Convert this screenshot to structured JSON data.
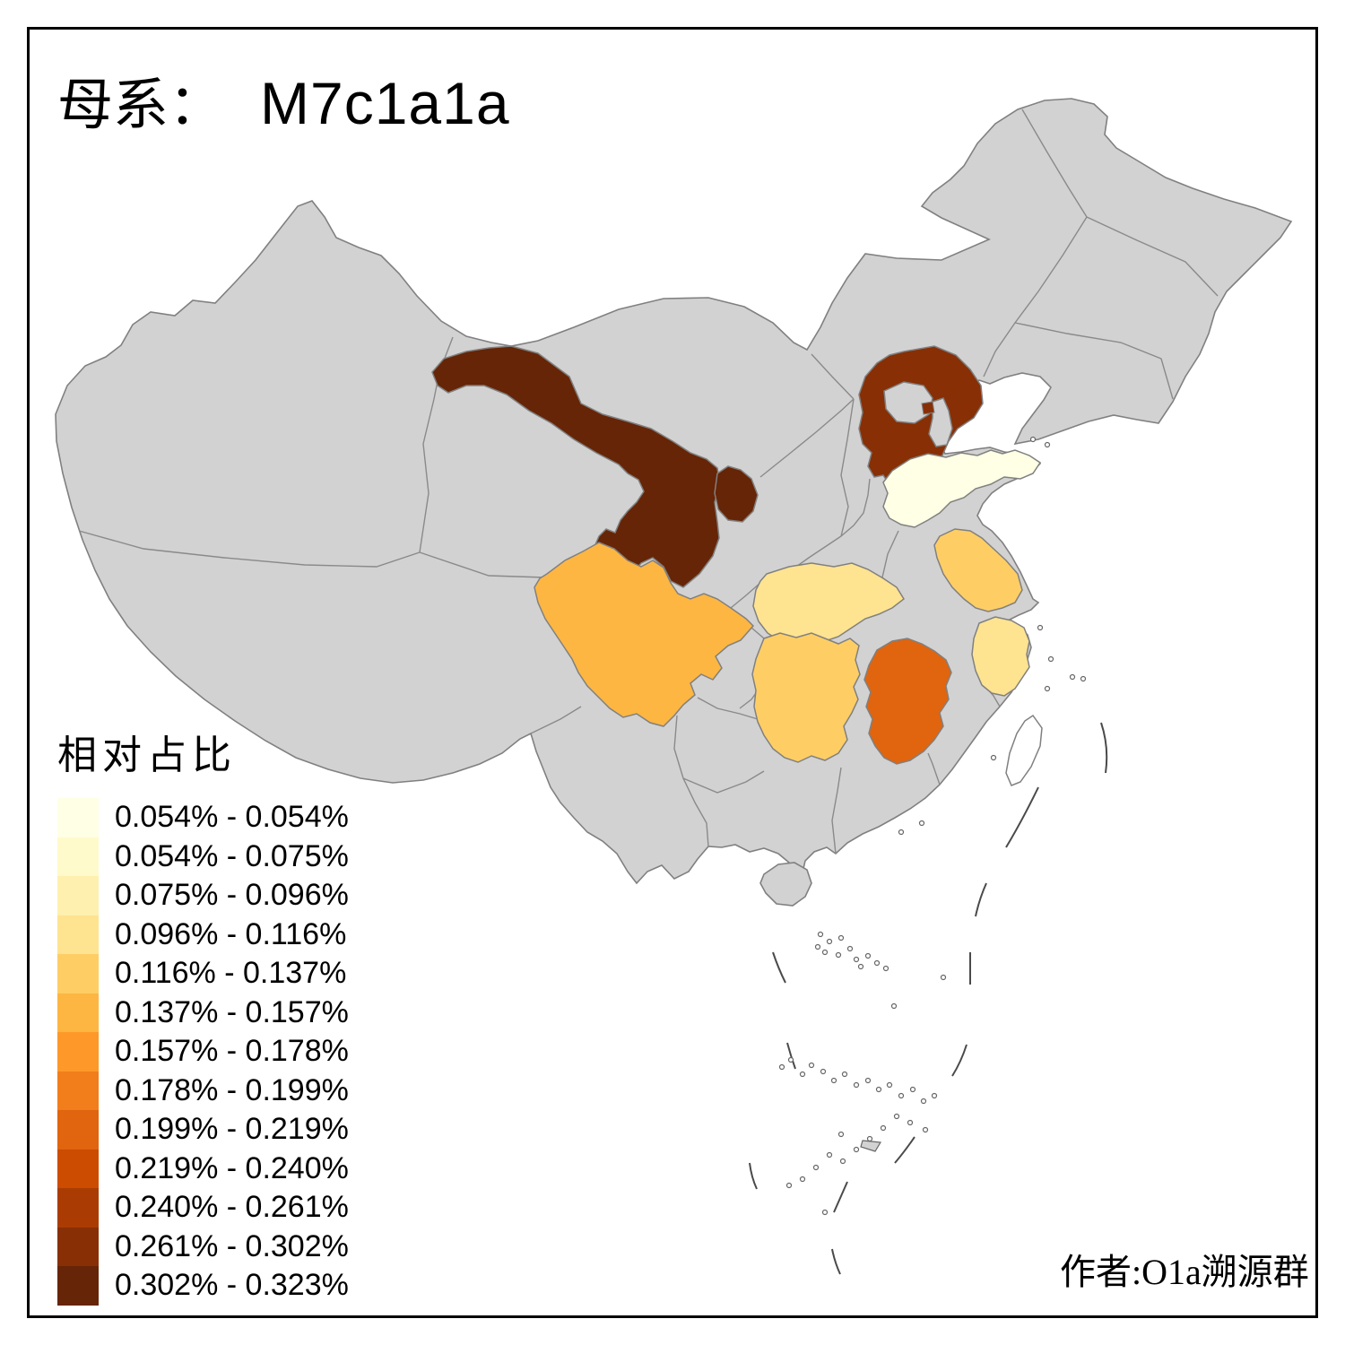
{
  "title": {
    "prefix": "母系：",
    "haplogroup": "M7c1a1a"
  },
  "legend": {
    "title": "相对占比",
    "items": [
      {
        "label": "0.054% - 0.054%",
        "color": "#FFFFE5"
      },
      {
        "label": "0.054% - 0.075%",
        "color": "#FFFACB"
      },
      {
        "label": "0.075% - 0.096%",
        "color": "#FEF0AE"
      },
      {
        "label": "0.096% - 0.116%",
        "color": "#FEE391"
      },
      {
        "label": "0.116% - 0.137%",
        "color": "#FECE65"
      },
      {
        "label": "0.137% - 0.157%",
        "color": "#FEB642"
      },
      {
        "label": "0.157% - 0.178%",
        "color": "#FE9929"
      },
      {
        "label": "0.178% - 0.199%",
        "color": "#F27E1B"
      },
      {
        "label": "0.199% - 0.219%",
        "color": "#E1640E"
      },
      {
        "label": "0.219% - 0.240%",
        "color": "#CC4C02"
      },
      {
        "label": "0.240% - 0.261%",
        "color": "#AA3C03"
      },
      {
        "label": "0.261% - 0.302%",
        "color": "#882F05"
      },
      {
        "label": "0.302% - 0.323%",
        "color": "#662506"
      }
    ]
  },
  "attribution": {
    "text": "作者:O1a溯源群"
  },
  "map": {
    "background": "#FFFFFF",
    "no_data_color": "#D2D2D2",
    "border_color": "#808080",
    "provinces": {
      "gansu": {
        "color": "#662506"
      },
      "ningxia": {
        "color": "#662506"
      },
      "hebei": {
        "color": "#882F05"
      },
      "hebei_exclave": {
        "color": "#882F05"
      },
      "shandong": {
        "color": "#FFFFE5"
      },
      "jiangsu": {
        "color": "#FECE65"
      },
      "zhejiang": {
        "color": "#FEE391"
      },
      "hubei": {
        "color": "#FEE391"
      },
      "hunan": {
        "color": "#FECE65"
      },
      "jiangxi": {
        "color": "#E1640E"
      },
      "sichuan": {
        "color": "#FEB642"
      },
      "taiwan": {
        "color": "#FFFFFF"
      }
    }
  }
}
